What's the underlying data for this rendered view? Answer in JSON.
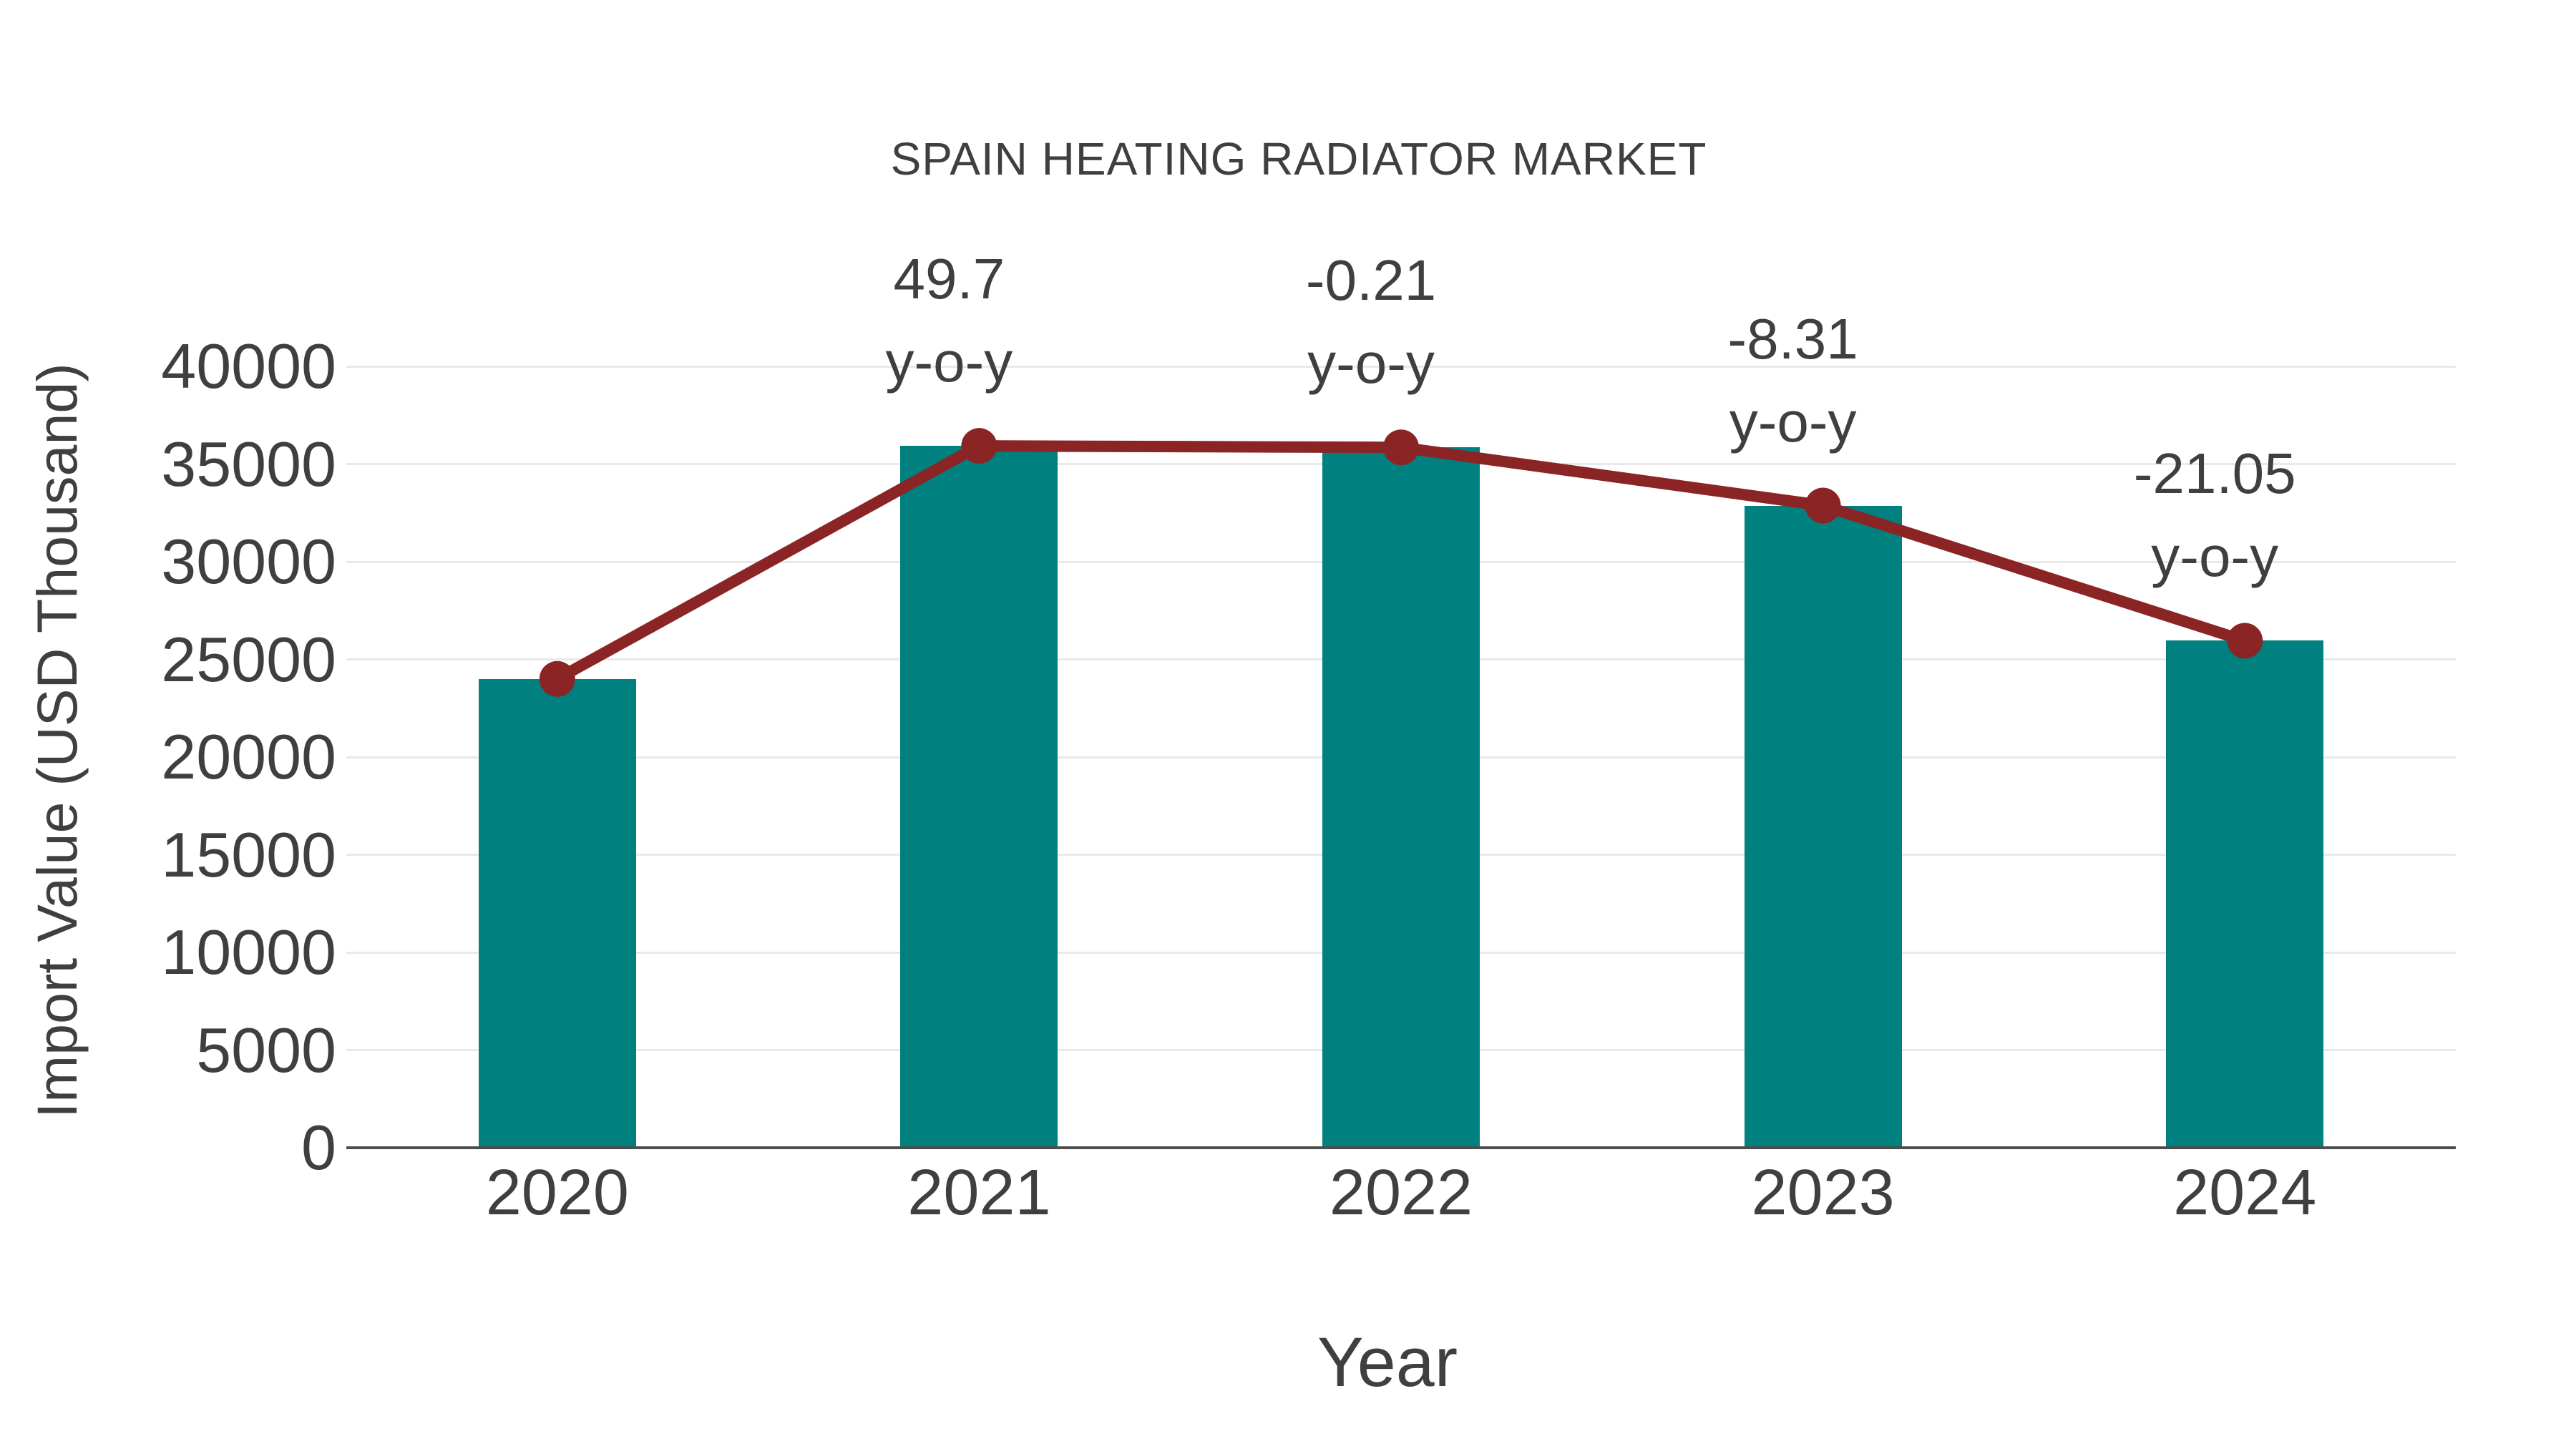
{
  "page": {
    "background": "#ffffff"
  },
  "chart_data": {
    "type": "bar",
    "subtype": "bar-with-line-overlay",
    "title": "SPAIN HEATING RADIATOR MARKET",
    "xlabel": "Year",
    "ylabel": "Import Value (USD Thousand)",
    "categories": [
      "2020",
      "2021",
      "2022",
      "2023",
      "2024"
    ],
    "series": [
      {
        "name": "Import Value bars",
        "type": "bar",
        "color": "#00807e",
        "values": [
          24000,
          35928,
          35853,
          32874,
          25954
        ]
      },
      {
        "name": "Import Value trend line",
        "type": "line",
        "marker": "circle",
        "color": "#8b2525",
        "values": [
          24000,
          35928,
          35853,
          32874,
          25954
        ]
      }
    ],
    "annotations": [
      {
        "category": "2021",
        "line1": "49.7",
        "line2": "y-o-y"
      },
      {
        "category": "2022",
        "line1": "-0.21",
        "line2": "y-o-y"
      },
      {
        "category": "2023",
        "line1": "-8.31",
        "line2": "y-o-y"
      },
      {
        "category": "2024",
        "line1": "-21.05",
        "line2": "y-o-y"
      }
    ],
    "y_ticks": [
      0,
      5000,
      10000,
      15000,
      20000,
      25000,
      30000,
      35000,
      40000
    ],
    "ylim": [
      0,
      40000
    ],
    "grid": "horizontal",
    "legend": "none",
    "colors": {
      "bar": "#00807e",
      "line": "#8b2525",
      "text": "#3f3f3f",
      "grid": "#e9e9e9",
      "axis": "#4d4d4d",
      "background": "#ffffff"
    }
  }
}
